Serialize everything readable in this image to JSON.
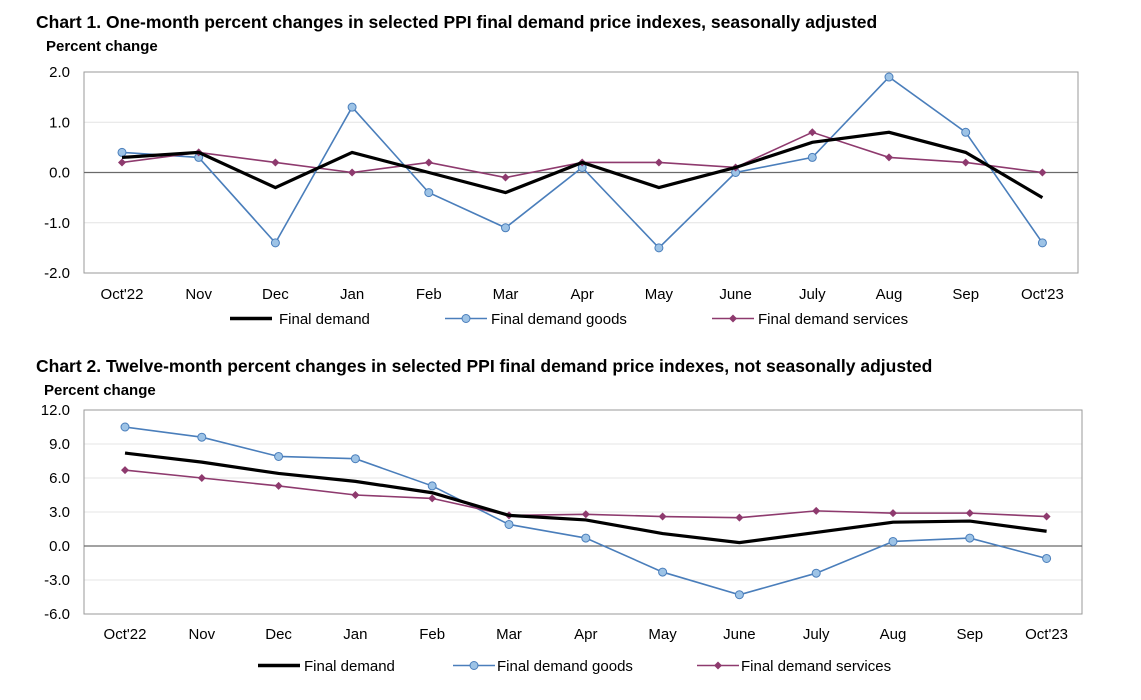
{
  "chart_data": [
    {
      "type": "line",
      "title": "Chart 1. One-month percent changes in selected PPI final demand price indexes, seasonally adjusted",
      "ylabel": "Percent change",
      "xlabel": "",
      "categories": [
        "Oct'22",
        "Nov",
        "Dec",
        "Jan",
        "Feb",
        "Mar",
        "Apr",
        "May",
        "June",
        "July",
        "Aug",
        "Sep",
        "Oct'23"
      ],
      "ylim": [
        -2.0,
        2.0
      ],
      "yticks": [
        2.0,
        1.0,
        0.0,
        -1.0,
        -2.0
      ],
      "ytick_labels": [
        "2.0",
        "1.0",
        "0.0",
        "-1.0",
        "-2.0"
      ],
      "legend_position": "bottom",
      "series": [
        {
          "name": "Final demand",
          "color": "#000000",
          "marker": "none",
          "values": [
            0.3,
            0.4,
            -0.3,
            0.4,
            0.0,
            -0.4,
            0.2,
            -0.3,
            0.1,
            0.6,
            0.8,
            0.4,
            -0.5
          ]
        },
        {
          "name": "Final demand goods",
          "color": "#4a7ebb",
          "marker": "circle",
          "values": [
            0.4,
            0.3,
            -1.4,
            1.3,
            -0.4,
            -1.1,
            0.1,
            -1.5,
            0.0,
            0.3,
            1.9,
            0.8,
            -1.4
          ]
        },
        {
          "name": "Final demand services",
          "color": "#8e3a6e",
          "marker": "diamond",
          "values": [
            0.2,
            0.4,
            0.2,
            0.0,
            0.2,
            -0.1,
            0.2,
            0.2,
            0.1,
            0.8,
            0.3,
            0.2,
            0.0
          ]
        }
      ]
    },
    {
      "type": "line",
      "title": "Chart 2. Twelve-month percent changes in selected PPI final demand price indexes, not seasonally adjusted",
      "ylabel": "Percent change",
      "xlabel": "",
      "categories": [
        "Oct'22",
        "Nov",
        "Dec",
        "Jan",
        "Feb",
        "Mar",
        "Apr",
        "May",
        "June",
        "July",
        "Aug",
        "Sep",
        "Oct'23"
      ],
      "ylim": [
        -6.0,
        12.0
      ],
      "yticks": [
        12.0,
        9.0,
        6.0,
        3.0,
        0.0,
        -3.0,
        -6.0
      ],
      "ytick_labels": [
        "12.0",
        "9.0",
        "6.0",
        "3.0",
        "0.0",
        "-3.0",
        "-6.0"
      ],
      "legend_position": "bottom",
      "series": [
        {
          "name": "Final demand",
          "color": "#000000",
          "marker": "none",
          "values": [
            8.2,
            7.4,
            6.4,
            5.7,
            4.7,
            2.7,
            2.3,
            1.1,
            0.3,
            1.2,
            2.1,
            2.2,
            1.3
          ]
        },
        {
          "name": "Final demand goods",
          "color": "#4a7ebb",
          "marker": "circle",
          "values": [
            10.5,
            9.6,
            7.9,
            7.7,
            5.3,
            1.9,
            0.7,
            -2.3,
            -4.3,
            -2.4,
            0.4,
            0.7,
            -1.1
          ]
        },
        {
          "name": "Final demand services",
          "color": "#8e3a6e",
          "marker": "diamond",
          "values": [
            6.7,
            6.0,
            5.3,
            4.5,
            4.2,
            2.7,
            2.8,
            2.6,
            2.5,
            3.1,
            2.9,
            2.9,
            2.6
          ]
        }
      ]
    }
  ]
}
